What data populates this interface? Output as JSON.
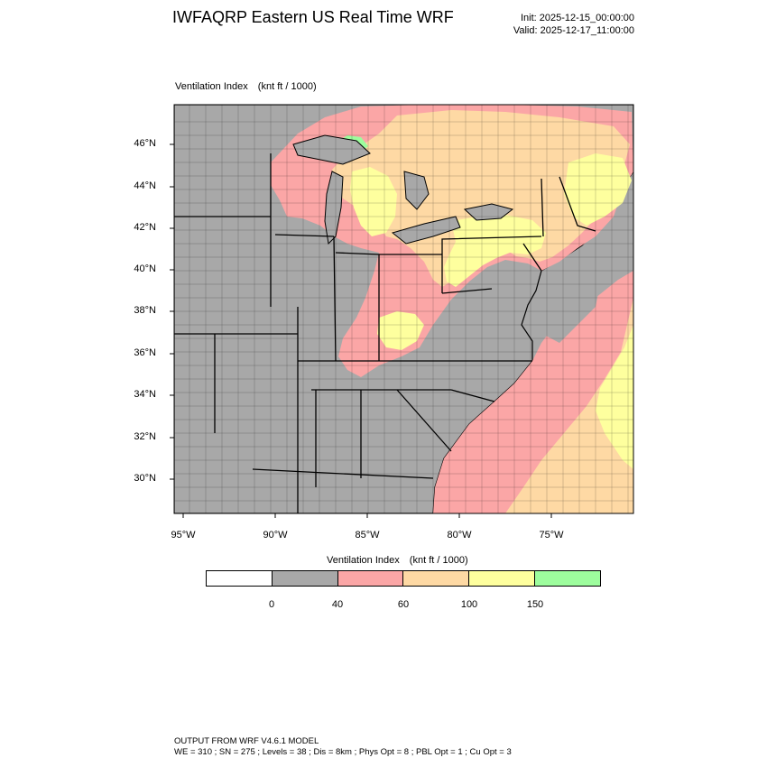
{
  "header": {
    "title": "IWFAQRP Eastern US Real Time WRF",
    "init": "Init: 2025-12-15_00:00:00",
    "valid": "Valid: 2025-12-17_11:00:00"
  },
  "map": {
    "field_name": "Ventilation Index",
    "field_units": "(knt ft / 1000)",
    "lat_labels": [
      "46°N",
      "44°N",
      "42°N",
      "40°N",
      "38°N",
      "36°N",
      "34°N",
      "32°N",
      "30°N"
    ],
    "lon_labels": [
      "95°W",
      "90°W",
      "85°W",
      "80°W",
      "75°W"
    ],
    "colors": {
      "gray": "#a8a8a8",
      "pink": "#fba6a6",
      "orange": "#fed9a4",
      "yellow": "#feff9e",
      "green": "#9dfd9d",
      "white": "#ffffff"
    }
  },
  "colorbar": {
    "title": "Ventilation Index",
    "units": "(knt ft / 1000)",
    "boxes": [
      "#ffffff",
      "#a8a8a8",
      "#fba6a6",
      "#fed9a4",
      "#feff9e",
      "#9dfd9d"
    ],
    "ticks": [
      "0",
      "40",
      "60",
      "100",
      "150"
    ]
  },
  "footer": {
    "line1": "OUTPUT FROM WRF V4.6.1 MODEL",
    "line2": "WE = 310 ; SN = 275 ; Levels = 38 ; Dis = 8km ; Phys Opt = 8 ; PBL Opt = 1 ; Cu Opt = 3"
  }
}
